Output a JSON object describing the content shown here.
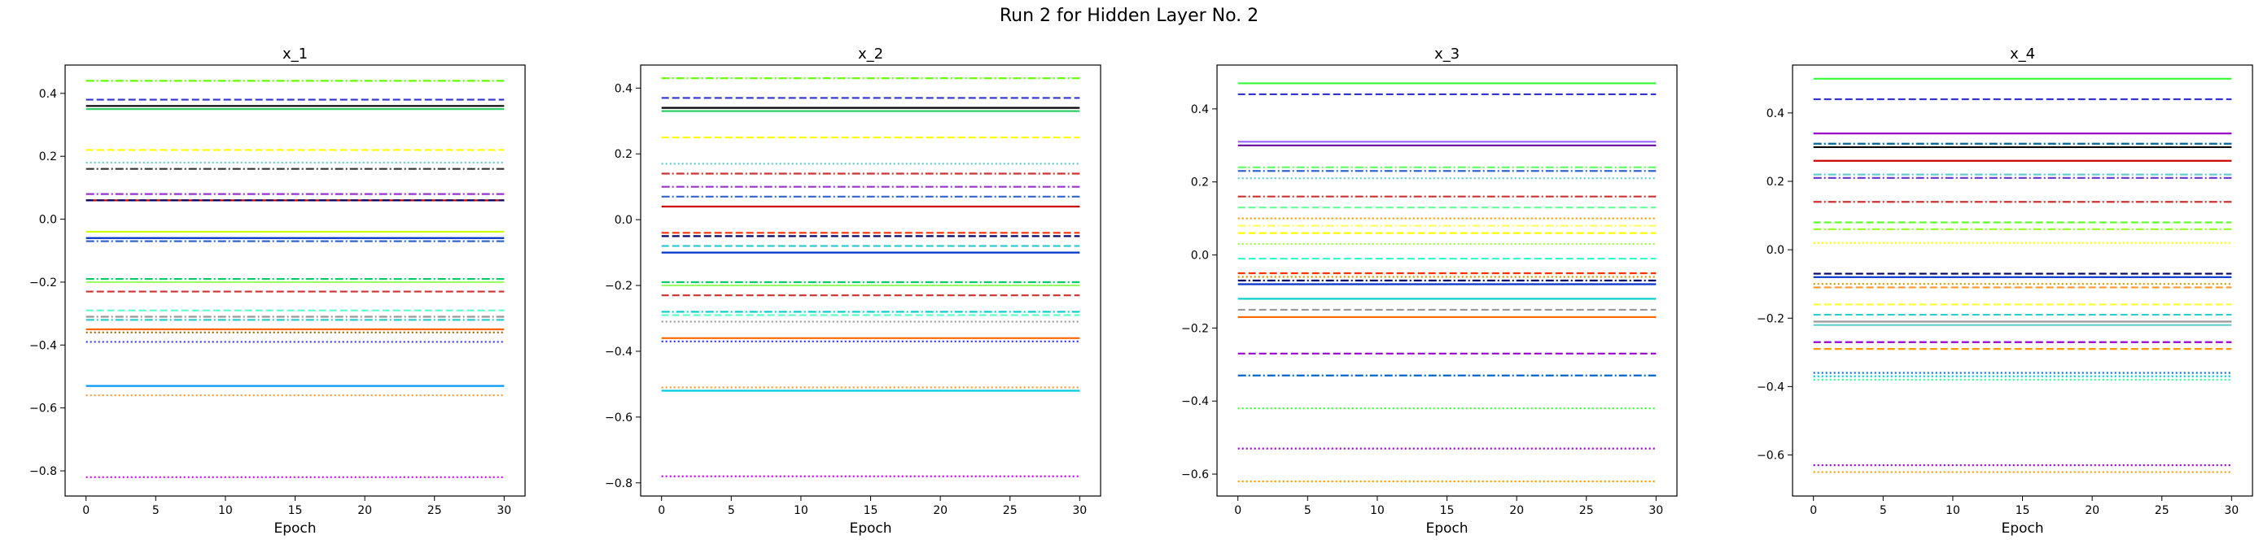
{
  "figure": {
    "title": "Run 2 for Hidden Layer No. 2"
  },
  "chart_data": [
    {
      "type": "line",
      "title": "x_1",
      "xlabel": "Epoch",
      "ylabel": "",
      "x": [
        0,
        30
      ],
      "xlim": [
        -1.5,
        31.5
      ],
      "ylim": [
        -0.88,
        0.49
      ],
      "xticks": [
        0,
        5,
        10,
        15,
        20,
        25,
        30
      ],
      "yticks": [
        -0.8,
        -0.6,
        -0.4,
        -0.2,
        0.0,
        0.2,
        0.4
      ],
      "series": [
        {
          "value": 0.44,
          "color": "#66ff00",
          "dash": "dashdot"
        },
        {
          "value": 0.38,
          "color": "#3333cc",
          "dash": "dashed"
        },
        {
          "value": 0.36,
          "color": "#000000",
          "dash": "solid"
        },
        {
          "value": 0.35,
          "color": "#33cc66",
          "dash": "solid"
        },
        {
          "value": 0.22,
          "color": "#ffff00",
          "dash": "dashed"
        },
        {
          "value": 0.18,
          "color": "#66cccc",
          "dash": "dotted"
        },
        {
          "value": 0.16,
          "color": "#333333",
          "dash": "dashdot"
        },
        {
          "value": 0.08,
          "color": "#9933cc",
          "dash": "dashdot"
        },
        {
          "value": 0.06,
          "color": "#cc0000",
          "dash": "solid"
        },
        {
          "value": 0.06,
          "color": "#000066",
          "dash": "dashed"
        },
        {
          "value": -0.04,
          "color": "#ccff00",
          "dash": "solid"
        },
        {
          "value": -0.06,
          "color": "#0033cc",
          "dash": "solid"
        },
        {
          "value": -0.07,
          "color": "#3366cc",
          "dash": "dashdot"
        },
        {
          "value": -0.19,
          "color": "#00cc66",
          "dash": "dashdot"
        },
        {
          "value": -0.2,
          "color": "#99ff66",
          "dash": "solid"
        },
        {
          "value": -0.23,
          "color": "#cc3333",
          "dash": "dashed"
        },
        {
          "value": -0.29,
          "color": "#66ffcc",
          "dash": "dashed"
        },
        {
          "value": -0.31,
          "color": "#999999",
          "dash": "dashdot"
        },
        {
          "value": -0.32,
          "color": "#33cccc",
          "dash": "dashdot"
        },
        {
          "value": -0.35,
          "color": "#ff6600",
          "dash": "solid"
        },
        {
          "value": -0.36,
          "color": "#996600",
          "dash": "dotted"
        },
        {
          "value": -0.39,
          "color": "#3333ff",
          "dash": "dotted"
        },
        {
          "value": -0.53,
          "color": "#0099ff",
          "dash": "solid"
        },
        {
          "value": -0.56,
          "color": "#ff9933",
          "dash": "dotted"
        },
        {
          "value": -0.82,
          "color": "#cc00ff",
          "dash": "dotted"
        }
      ]
    },
    {
      "type": "line",
      "title": "x_2",
      "xlabel": "Epoch",
      "ylabel": "",
      "x": [
        0,
        30
      ],
      "xlim": [
        -1.5,
        31.5
      ],
      "ylim": [
        -0.84,
        0.47
      ],
      "xticks": [
        0,
        5,
        10,
        15,
        20,
        25,
        30
      ],
      "yticks": [
        -0.8,
        -0.6,
        -0.4,
        -0.2,
        0.0,
        0.2,
        0.4
      ],
      "series": [
        {
          "value": 0.43,
          "color": "#66ff00",
          "dash": "dashdot"
        },
        {
          "value": 0.37,
          "color": "#3333cc",
          "dash": "dashed"
        },
        {
          "value": 0.34,
          "color": "#000000",
          "dash": "solid"
        },
        {
          "value": 0.33,
          "color": "#33cc66",
          "dash": "solid"
        },
        {
          "value": 0.25,
          "color": "#ffff00",
          "dash": "dashed"
        },
        {
          "value": 0.17,
          "color": "#66cccc",
          "dash": "dotted"
        },
        {
          "value": 0.14,
          "color": "#cc3333",
          "dash": "dashdot"
        },
        {
          "value": 0.1,
          "color": "#9933cc",
          "dash": "dashdot"
        },
        {
          "value": 0.07,
          "color": "#3366cc",
          "dash": "dashdot"
        },
        {
          "value": 0.04,
          "color": "#cc0000",
          "dash": "solid"
        },
        {
          "value": -0.04,
          "color": "#ff3300",
          "dash": "dashed"
        },
        {
          "value": -0.05,
          "color": "#000066",
          "dash": "dashed"
        },
        {
          "value": -0.08,
          "color": "#33cccc",
          "dash": "dashed"
        },
        {
          "value": -0.1,
          "color": "#0033cc",
          "dash": "solid"
        },
        {
          "value": -0.19,
          "color": "#00cc66",
          "dash": "dashdot"
        },
        {
          "value": -0.2,
          "color": "#99ff66",
          "dash": "solid"
        },
        {
          "value": -0.23,
          "color": "#cc3333",
          "dash": "dashed"
        },
        {
          "value": -0.28,
          "color": "#00cccc",
          "dash": "dashdot"
        },
        {
          "value": -0.29,
          "color": "#66ffcc",
          "dash": "dashed"
        },
        {
          "value": -0.31,
          "color": "#999999",
          "dash": "dotted"
        },
        {
          "value": -0.36,
          "color": "#ff6600",
          "dash": "solid"
        },
        {
          "value": -0.37,
          "color": "#3333ff",
          "dash": "dotted"
        },
        {
          "value": -0.51,
          "color": "#ff9933",
          "dash": "dotted"
        },
        {
          "value": -0.52,
          "color": "#00ccdd",
          "dash": "solid"
        },
        {
          "value": -0.78,
          "color": "#cc00ff",
          "dash": "dotted"
        }
      ]
    },
    {
      "type": "line",
      "title": "x_3",
      "xlabel": "Epoch",
      "ylabel": "",
      "x": [
        0,
        30
      ],
      "xlim": [
        -1.5,
        31.5
      ],
      "ylim": [
        -0.66,
        0.52
      ],
      "xticks": [
        0,
        5,
        10,
        15,
        20,
        25,
        30
      ],
      "yticks": [
        -0.6,
        -0.4,
        -0.2,
        0.0,
        0.2,
        0.4
      ],
      "series": [
        {
          "value": 0.47,
          "color": "#33ff33",
          "dash": "solid"
        },
        {
          "value": 0.44,
          "color": "#3333cc",
          "dash": "dashed"
        },
        {
          "value": 0.31,
          "color": "#9966ff",
          "dash": "solid"
        },
        {
          "value": 0.3,
          "color": "#660099",
          "dash": "solid"
        },
        {
          "value": 0.24,
          "color": "#66ff66",
          "dash": "dashdot"
        },
        {
          "value": 0.23,
          "color": "#3366cc",
          "dash": "dashdot"
        },
        {
          "value": 0.21,
          "color": "#66cccc",
          "dash": "dotted"
        },
        {
          "value": 0.16,
          "color": "#cc3333",
          "dash": "dashdot"
        },
        {
          "value": 0.13,
          "color": "#66ff99",
          "dash": "dashed"
        },
        {
          "value": 0.1,
          "color": "#ff9900",
          "dash": "dotted"
        },
        {
          "value": 0.08,
          "color": "#ffff66",
          "dash": "dashdot"
        },
        {
          "value": 0.06,
          "color": "#ffff00",
          "dash": "dashed"
        },
        {
          "value": 0.03,
          "color": "#99ff33",
          "dash": "dotted"
        },
        {
          "value": -0.01,
          "color": "#33ffcc",
          "dash": "dashed"
        },
        {
          "value": -0.05,
          "color": "#ff3300",
          "dash": "dashed"
        },
        {
          "value": -0.06,
          "color": "#cc9900",
          "dash": "dotted"
        },
        {
          "value": -0.07,
          "color": "#000066",
          "dash": "dashdot"
        },
        {
          "value": -0.08,
          "color": "#0033cc",
          "dash": "solid"
        },
        {
          "value": -0.12,
          "color": "#00cccc",
          "dash": "solid"
        },
        {
          "value": -0.15,
          "color": "#999999",
          "dash": "dashed"
        },
        {
          "value": -0.17,
          "color": "#ff6600",
          "dash": "solid"
        },
        {
          "value": -0.27,
          "color": "#9900cc",
          "dash": "dashed"
        },
        {
          "value": -0.33,
          "color": "#0066cc",
          "dash": "dashdot"
        },
        {
          "value": -0.42,
          "color": "#33ff33",
          "dash": "dotted"
        },
        {
          "value": -0.53,
          "color": "#9900cc",
          "dash": "dotted"
        },
        {
          "value": -0.62,
          "color": "#ff9900",
          "dash": "dotted"
        }
      ]
    },
    {
      "type": "line",
      "title": "x_4",
      "xlabel": "Epoch",
      "ylabel": "",
      "x": [
        0,
        30
      ],
      "xlim": [
        -1.5,
        31.5
      ],
      "ylim": [
        -0.72,
        0.54
      ],
      "xticks": [
        0,
        5,
        10,
        15,
        20,
        25,
        30
      ],
      "yticks": [
        -0.6,
        -0.4,
        -0.2,
        0.0,
        0.2,
        0.4
      ],
      "series": [
        {
          "value": 0.5,
          "color": "#33ff33",
          "dash": "solid"
        },
        {
          "value": 0.44,
          "color": "#3333cc",
          "dash": "dashed"
        },
        {
          "value": 0.34,
          "color": "#9900cc",
          "dash": "solid"
        },
        {
          "value": 0.31,
          "color": "#006699",
          "dash": "dashdot"
        },
        {
          "value": 0.3,
          "color": "#000000",
          "dash": "solid"
        },
        {
          "value": 0.26,
          "color": "#cc0000",
          "dash": "solid"
        },
        {
          "value": 0.22,
          "color": "#66cccc",
          "dash": "dashdot"
        },
        {
          "value": 0.21,
          "color": "#6633cc",
          "dash": "dashdot"
        },
        {
          "value": 0.14,
          "color": "#cc3333",
          "dash": "dashdot"
        },
        {
          "value": 0.08,
          "color": "#66ff33",
          "dash": "dashed"
        },
        {
          "value": 0.06,
          "color": "#99ff33",
          "dash": "dashdot"
        },
        {
          "value": 0.02,
          "color": "#ffff00",
          "dash": "dotted"
        },
        {
          "value": -0.07,
          "color": "#000066",
          "dash": "dashed"
        },
        {
          "value": -0.08,
          "color": "#0033cc",
          "dash": "solid"
        },
        {
          "value": -0.1,
          "color": "#cc9900",
          "dash": "dotted"
        },
        {
          "value": -0.11,
          "color": "#ff9933",
          "dash": "dashed"
        },
        {
          "value": -0.16,
          "color": "#ffff33",
          "dash": "dashed"
        },
        {
          "value": -0.19,
          "color": "#33cccc",
          "dash": "dashed"
        },
        {
          "value": -0.21,
          "color": "#999999",
          "dash": "solid"
        },
        {
          "value": -0.22,
          "color": "#66cccc",
          "dash": "solid"
        },
        {
          "value": -0.27,
          "color": "#9900cc",
          "dash": "dashed"
        },
        {
          "value": -0.29,
          "color": "#ff9900",
          "dash": "dashed"
        },
        {
          "value": -0.36,
          "color": "#0066cc",
          "dash": "dotted"
        },
        {
          "value": -0.37,
          "color": "#00cccc",
          "dash": "dotted"
        },
        {
          "value": -0.38,
          "color": "#33ff99",
          "dash": "dotted"
        },
        {
          "value": -0.63,
          "color": "#9900cc",
          "dash": "dotted"
        },
        {
          "value": -0.65,
          "color": "#ff9900",
          "dash": "dotted"
        }
      ]
    }
  ]
}
